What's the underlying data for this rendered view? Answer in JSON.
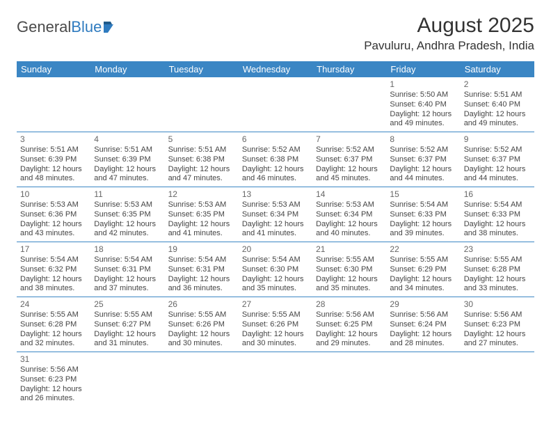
{
  "logo": {
    "text1": "General",
    "text2": "Blue"
  },
  "title": "August 2025",
  "location": "Pavuluru, Andhra Pradesh, India",
  "colors": {
    "header_bg": "#3b86c4",
    "header_text": "#ffffff",
    "cell_border": "#3b86c4",
    "body_text": "#444444",
    "daynum": "#666666",
    "logo_gray": "#4a4a4a",
    "logo_blue": "#2f7bbf",
    "bg": "#ffffff"
  },
  "weekdays": [
    "Sunday",
    "Monday",
    "Tuesday",
    "Wednesday",
    "Thursday",
    "Friday",
    "Saturday"
  ],
  "weeks": [
    [
      null,
      null,
      null,
      null,
      null,
      {
        "d": "1",
        "sr": "Sunrise: 5:50 AM",
        "ss": "Sunset: 6:40 PM",
        "dl1": "Daylight: 12 hours",
        "dl2": "and 49 minutes."
      },
      {
        "d": "2",
        "sr": "Sunrise: 5:51 AM",
        "ss": "Sunset: 6:40 PM",
        "dl1": "Daylight: 12 hours",
        "dl2": "and 49 minutes."
      }
    ],
    [
      {
        "d": "3",
        "sr": "Sunrise: 5:51 AM",
        "ss": "Sunset: 6:39 PM",
        "dl1": "Daylight: 12 hours",
        "dl2": "and 48 minutes."
      },
      {
        "d": "4",
        "sr": "Sunrise: 5:51 AM",
        "ss": "Sunset: 6:39 PM",
        "dl1": "Daylight: 12 hours",
        "dl2": "and 47 minutes."
      },
      {
        "d": "5",
        "sr": "Sunrise: 5:51 AM",
        "ss": "Sunset: 6:38 PM",
        "dl1": "Daylight: 12 hours",
        "dl2": "and 47 minutes."
      },
      {
        "d": "6",
        "sr": "Sunrise: 5:52 AM",
        "ss": "Sunset: 6:38 PM",
        "dl1": "Daylight: 12 hours",
        "dl2": "and 46 minutes."
      },
      {
        "d": "7",
        "sr": "Sunrise: 5:52 AM",
        "ss": "Sunset: 6:37 PM",
        "dl1": "Daylight: 12 hours",
        "dl2": "and 45 minutes."
      },
      {
        "d": "8",
        "sr": "Sunrise: 5:52 AM",
        "ss": "Sunset: 6:37 PM",
        "dl1": "Daylight: 12 hours",
        "dl2": "and 44 minutes."
      },
      {
        "d": "9",
        "sr": "Sunrise: 5:52 AM",
        "ss": "Sunset: 6:37 PM",
        "dl1": "Daylight: 12 hours",
        "dl2": "and 44 minutes."
      }
    ],
    [
      {
        "d": "10",
        "sr": "Sunrise: 5:53 AM",
        "ss": "Sunset: 6:36 PM",
        "dl1": "Daylight: 12 hours",
        "dl2": "and 43 minutes."
      },
      {
        "d": "11",
        "sr": "Sunrise: 5:53 AM",
        "ss": "Sunset: 6:35 PM",
        "dl1": "Daylight: 12 hours",
        "dl2": "and 42 minutes."
      },
      {
        "d": "12",
        "sr": "Sunrise: 5:53 AM",
        "ss": "Sunset: 6:35 PM",
        "dl1": "Daylight: 12 hours",
        "dl2": "and 41 minutes."
      },
      {
        "d": "13",
        "sr": "Sunrise: 5:53 AM",
        "ss": "Sunset: 6:34 PM",
        "dl1": "Daylight: 12 hours",
        "dl2": "and 41 minutes."
      },
      {
        "d": "14",
        "sr": "Sunrise: 5:53 AM",
        "ss": "Sunset: 6:34 PM",
        "dl1": "Daylight: 12 hours",
        "dl2": "and 40 minutes."
      },
      {
        "d": "15",
        "sr": "Sunrise: 5:54 AM",
        "ss": "Sunset: 6:33 PM",
        "dl1": "Daylight: 12 hours",
        "dl2": "and 39 minutes."
      },
      {
        "d": "16",
        "sr": "Sunrise: 5:54 AM",
        "ss": "Sunset: 6:33 PM",
        "dl1": "Daylight: 12 hours",
        "dl2": "and 38 minutes."
      }
    ],
    [
      {
        "d": "17",
        "sr": "Sunrise: 5:54 AM",
        "ss": "Sunset: 6:32 PM",
        "dl1": "Daylight: 12 hours",
        "dl2": "and 38 minutes."
      },
      {
        "d": "18",
        "sr": "Sunrise: 5:54 AM",
        "ss": "Sunset: 6:31 PM",
        "dl1": "Daylight: 12 hours",
        "dl2": "and 37 minutes."
      },
      {
        "d": "19",
        "sr": "Sunrise: 5:54 AM",
        "ss": "Sunset: 6:31 PM",
        "dl1": "Daylight: 12 hours",
        "dl2": "and 36 minutes."
      },
      {
        "d": "20",
        "sr": "Sunrise: 5:54 AM",
        "ss": "Sunset: 6:30 PM",
        "dl1": "Daylight: 12 hours",
        "dl2": "and 35 minutes."
      },
      {
        "d": "21",
        "sr": "Sunrise: 5:55 AM",
        "ss": "Sunset: 6:30 PM",
        "dl1": "Daylight: 12 hours",
        "dl2": "and 35 minutes."
      },
      {
        "d": "22",
        "sr": "Sunrise: 5:55 AM",
        "ss": "Sunset: 6:29 PM",
        "dl1": "Daylight: 12 hours",
        "dl2": "and 34 minutes."
      },
      {
        "d": "23",
        "sr": "Sunrise: 5:55 AM",
        "ss": "Sunset: 6:28 PM",
        "dl1": "Daylight: 12 hours",
        "dl2": "and 33 minutes."
      }
    ],
    [
      {
        "d": "24",
        "sr": "Sunrise: 5:55 AM",
        "ss": "Sunset: 6:28 PM",
        "dl1": "Daylight: 12 hours",
        "dl2": "and 32 minutes."
      },
      {
        "d": "25",
        "sr": "Sunrise: 5:55 AM",
        "ss": "Sunset: 6:27 PM",
        "dl1": "Daylight: 12 hours",
        "dl2": "and 31 minutes."
      },
      {
        "d": "26",
        "sr": "Sunrise: 5:55 AM",
        "ss": "Sunset: 6:26 PM",
        "dl1": "Daylight: 12 hours",
        "dl2": "and 30 minutes."
      },
      {
        "d": "27",
        "sr": "Sunrise: 5:55 AM",
        "ss": "Sunset: 6:26 PM",
        "dl1": "Daylight: 12 hours",
        "dl2": "and 30 minutes."
      },
      {
        "d": "28",
        "sr": "Sunrise: 5:56 AM",
        "ss": "Sunset: 6:25 PM",
        "dl1": "Daylight: 12 hours",
        "dl2": "and 29 minutes."
      },
      {
        "d": "29",
        "sr": "Sunrise: 5:56 AM",
        "ss": "Sunset: 6:24 PM",
        "dl1": "Daylight: 12 hours",
        "dl2": "and 28 minutes."
      },
      {
        "d": "30",
        "sr": "Sunrise: 5:56 AM",
        "ss": "Sunset: 6:23 PM",
        "dl1": "Daylight: 12 hours",
        "dl2": "and 27 minutes."
      }
    ],
    [
      {
        "d": "31",
        "sr": "Sunrise: 5:56 AM",
        "ss": "Sunset: 6:23 PM",
        "dl1": "Daylight: 12 hours",
        "dl2": "and 26 minutes."
      },
      null,
      null,
      null,
      null,
      null,
      null
    ]
  ]
}
